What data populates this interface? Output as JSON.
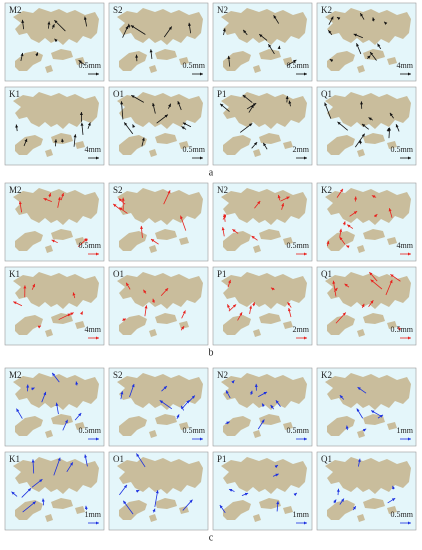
{
  "groups": [
    {
      "label": "a",
      "color": "#111111",
      "panels": [
        {
          "name": "M2",
          "scale": "0.5mm"
        },
        {
          "name": "S2",
          "scale": "0.5mm"
        },
        {
          "name": "N2",
          "scale": "0.5mm"
        },
        {
          "name": "K2",
          "scale": "4mm"
        },
        {
          "name": "K1",
          "scale": "4mm"
        },
        {
          "name": "O1",
          "scale": "0.5mm"
        },
        {
          "name": "P1",
          "scale": "2mm"
        },
        {
          "name": "Q1",
          "scale": "0.5mm"
        }
      ]
    },
    {
      "label": "b",
      "color": "#e8201c",
      "panels": [
        {
          "name": "M2",
          "scale": "0.5mm"
        },
        {
          "name": "S2"
        },
        {
          "name": "N2",
          "scale": "0.5mm"
        },
        {
          "name": "K2",
          "scale": "4mm"
        },
        {
          "name": "K1",
          "scale": "4mm"
        },
        {
          "name": "O1"
        },
        {
          "name": "P1",
          "scale": "2mm"
        },
        {
          "name": "Q1",
          "scale": "0.5mm"
        }
      ]
    },
    {
      "label": "c",
      "color": "#1a2fe0",
      "panels": [
        {
          "name": "M2",
          "scale": "0.5mm"
        },
        {
          "name": "S2",
          "scale": "0.5mm"
        },
        {
          "name": "N2",
          "scale": "0.5mm"
        },
        {
          "name": "K2",
          "scale": "1mm"
        },
        {
          "name": "K1",
          "scale": "1mm"
        },
        {
          "name": "O1"
        },
        {
          "name": "P1",
          "scale": "1mm"
        },
        {
          "name": "Q1",
          "scale": "0.5mm"
        }
      ]
    }
  ]
}
